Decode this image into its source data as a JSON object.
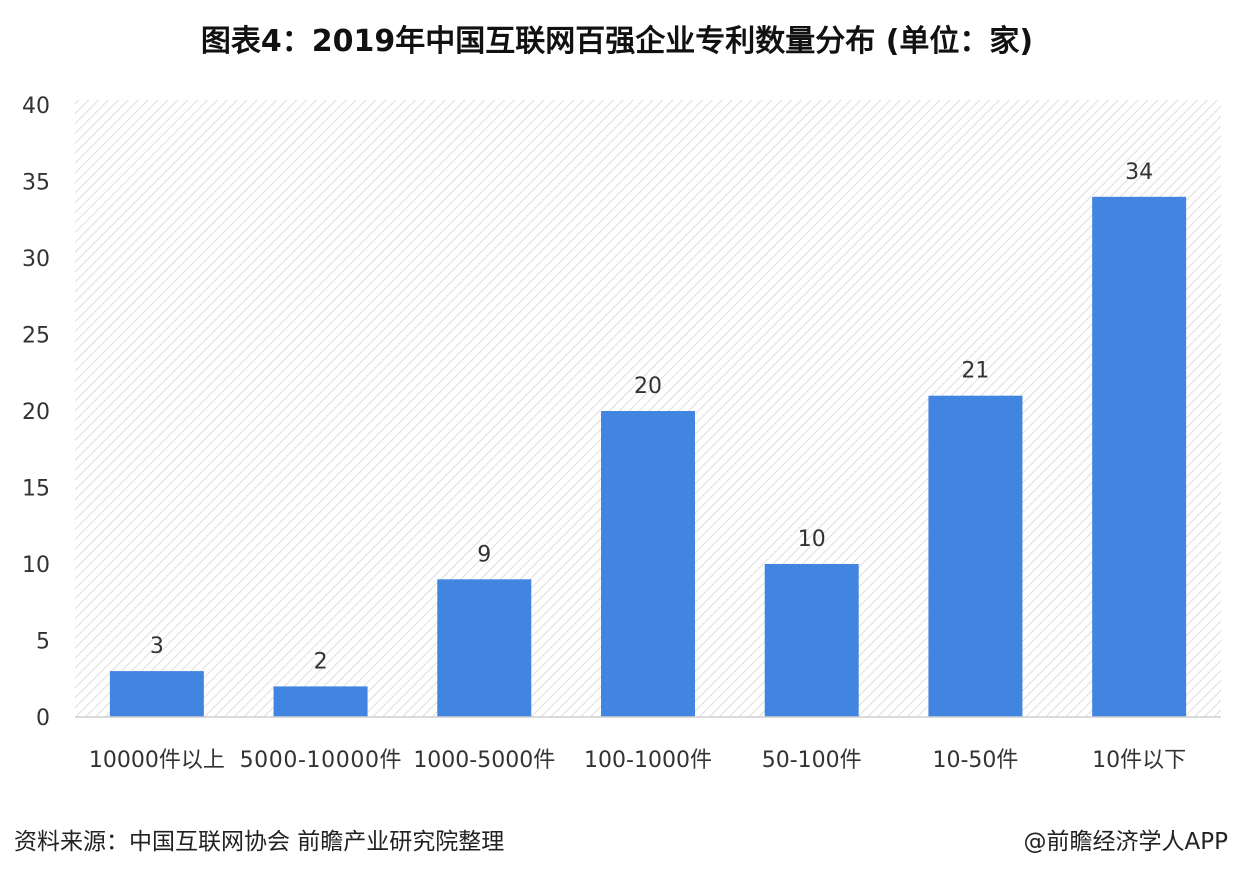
{
  "chart_data": {
    "type": "bar",
    "title": "图表4：2019年中国互联网百强企业专利数量分布 (单位：家)",
    "categories": [
      "10000件以上",
      "5000-10000件",
      "1000-5000件",
      "100-1000件",
      "50-100件",
      "10-50件",
      "10件以下"
    ],
    "values": [
      3,
      2,
      9,
      20,
      10,
      21,
      34
    ],
    "ylim": [
      0,
      40
    ],
    "yticks": [
      0,
      5,
      10,
      15,
      20,
      25,
      30,
      35,
      40
    ],
    "xlabel": "",
    "ylabel": "",
    "grid": false,
    "bar_color": "#4285e0"
  },
  "footer": {
    "source": "资料来源：中国互联网协会 前瞻产业研究院整理",
    "brand": "@前瞻经济学人APP"
  }
}
